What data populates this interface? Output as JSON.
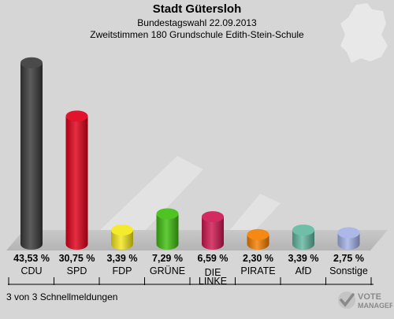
{
  "header": {
    "title": "Stadt Gütersloh",
    "subtitle": "Bundestagswahl 22.09.2013",
    "subtitle2": "Zweitstimmen 180 Grundschule Edith-Stein-Schule"
  },
  "footer": {
    "text": "3 von 3 Schnellmeldungen"
  },
  "logo": {
    "line1": "VOTE",
    "line2": "MANAGER"
  },
  "chart_data": {
    "type": "bar",
    "ylim": [
      0,
      45
    ],
    "categories": [
      "CDU",
      "SPD",
      "FDP",
      "GRÜNE",
      "DIE LINKE",
      "PIRATE",
      "AfD",
      "Sonstige"
    ],
    "category_lines": [
      [
        "CDU"
      ],
      [
        "SPD"
      ],
      [
        "FDP"
      ],
      [
        "GRÜNE"
      ],
      [
        "DIE",
        "LINKE"
      ],
      [
        "PIRATE"
      ],
      [
        "AfD"
      ],
      [
        "Sonstige"
      ]
    ],
    "values": [
      43.53,
      30.75,
      3.39,
      7.29,
      6.59,
      2.3,
      3.39,
      2.75
    ],
    "value_labels": [
      "43,53 %",
      "30,75 %",
      "3,39 %",
      "7,29 %",
      "6,59 %",
      "2,30 %",
      "3,39 %",
      "2,75 %"
    ],
    "colors": [
      "#3a3a3a",
      "#e0001a",
      "#f5e81c",
      "#3fbf0f",
      "#cf1751",
      "#f57f00",
      "#63b8a0",
      "#a4b2e6"
    ]
  }
}
